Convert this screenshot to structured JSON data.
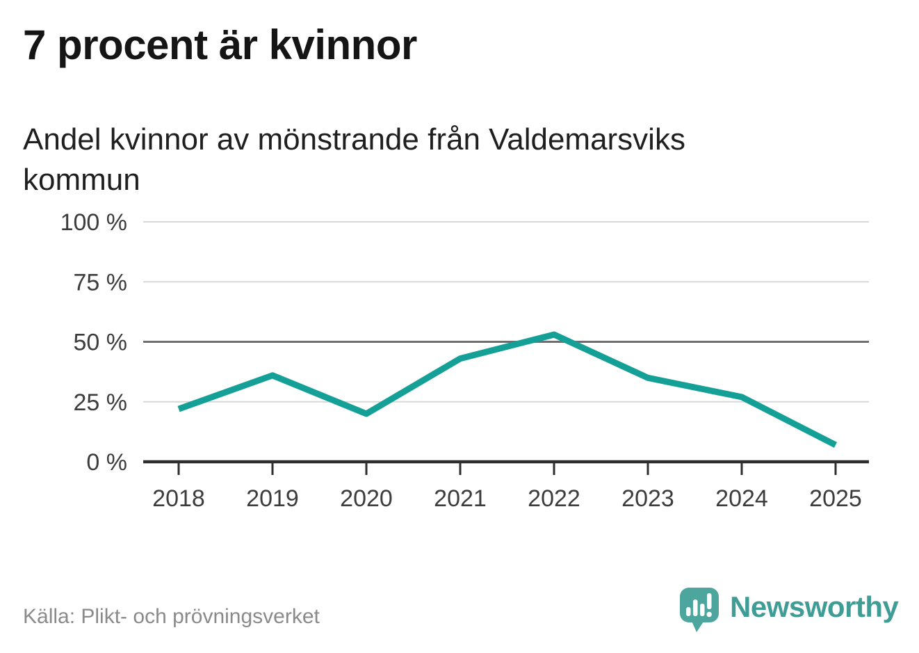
{
  "header": {
    "title": "7 procent är kvinnor",
    "subtitle": "Andel kvinnor av mönstrande från Valdemarsviks kommun"
  },
  "footer": {
    "source": "Källa: Plikt- och prövningsverket",
    "brand_name": "Newsworthy"
  },
  "colors": {
    "line": "#14a096",
    "grid": "#d8d8d8",
    "grid_emphasis": "#6e6e6e",
    "axis": "#2e2e2e",
    "tick_label": "#3c3c3c",
    "source_text": "#8a8a8a",
    "brand_text": "#3f9d95",
    "logo_bubble": "#4ca69d",
    "logo_glyph": "#ffffff",
    "background": "#ffffff"
  },
  "chart_data": {
    "type": "line",
    "title": "Andel kvinnor av mönstrande från Valdemarsviks kommun",
    "categories": [
      "2018",
      "2019",
      "2020",
      "2021",
      "2022",
      "2023",
      "2024",
      "2025"
    ],
    "series": [
      {
        "name": "Andel kvinnor av mönstrande",
        "values": [
          22,
          36,
          20,
          43,
          53,
          35,
          27,
          7
        ]
      }
    ],
    "unit": "%",
    "xlabel": "",
    "ylabel": "",
    "ylim": [
      0,
      100
    ],
    "yticks": [
      0,
      25,
      50,
      75,
      100
    ],
    "ytick_labels": [
      "0 %",
      "25 %",
      "50 %",
      "75 %",
      "100 %"
    ],
    "emphasized_gridline": 50,
    "grid": true,
    "legend": false
  }
}
